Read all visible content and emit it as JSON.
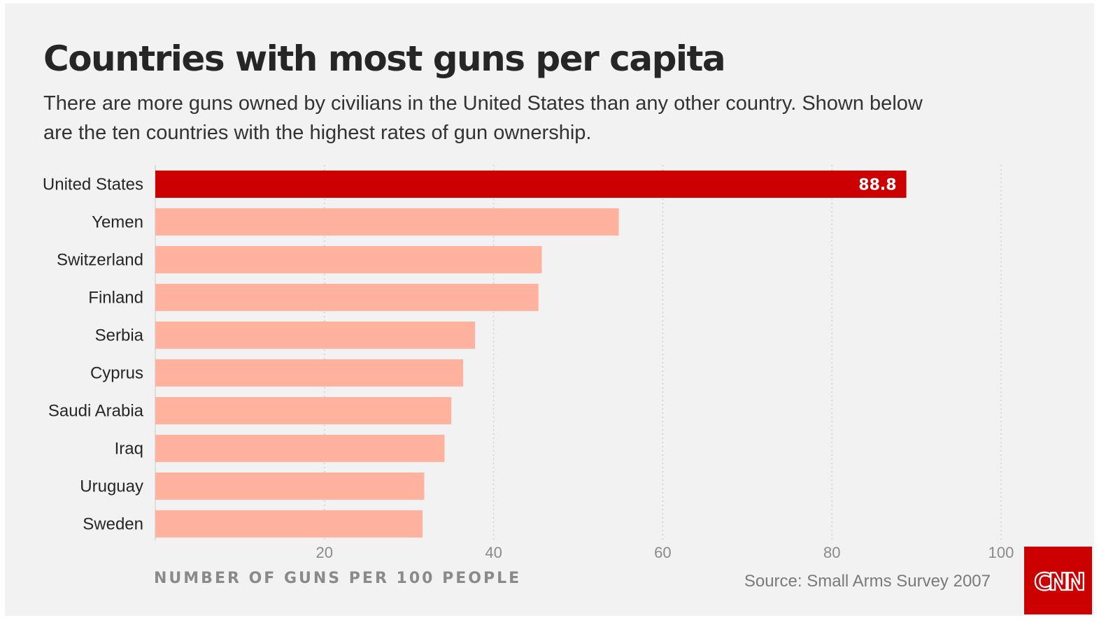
{
  "header": {
    "title": "Countries with most guns per capita",
    "subtitle": "There are more guns owned by civilians in the United States than any other country. Shown below are the ten countries with the highest rates of gun ownership."
  },
  "footer": {
    "source": "Source: Small Arms Survey 2007",
    "logo_text": "CNN"
  },
  "colors": {
    "highlight": "#cc0000",
    "bar": "#ffb39e",
    "background": "#f2f2f2",
    "logo_bg": "#cc0000"
  },
  "chart_data": {
    "type": "bar",
    "orientation": "horizontal",
    "title": "Countries with most guns per capita",
    "xlabel": "NUMBER OF GUNS PER 100 PEOPLE",
    "ylabel": "",
    "xlim": [
      0,
      100
    ],
    "xticks": [
      20,
      40,
      60,
      80,
      100
    ],
    "grid": true,
    "categories": [
      "United States",
      "Yemen",
      "Switzerland",
      "Finland",
      "Serbia",
      "Cyprus",
      "Saudi Arabia",
      "Iraq",
      "Uruguay",
      "Sweden"
    ],
    "values": [
      88.8,
      54.8,
      45.7,
      45.3,
      37.8,
      36.4,
      35.0,
      34.2,
      31.8,
      31.6
    ],
    "highlight_index": 0,
    "data_labels": [
      "88.8"
    ]
  }
}
